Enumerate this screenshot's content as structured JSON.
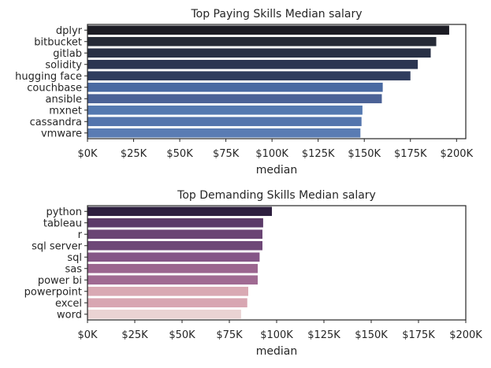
{
  "chart_data": [
    {
      "type": "bar",
      "orientation": "horizontal",
      "title": "Top Paying Skills Median salary",
      "xlabel": "median",
      "ylabel": "",
      "categories": [
        "dplyr",
        "bitbucket",
        "gitlab",
        "solidity",
        "hugging face",
        "couchbase",
        "ansible",
        "mxnet",
        "cassandra",
        "vmware"
      ],
      "values": [
        196000,
        189000,
        186000,
        179000,
        175000,
        160000,
        159500,
        149000,
        148500,
        147900
      ],
      "colors": [
        "#1c1c24",
        "#252a36",
        "#283045",
        "#2b3551",
        "#2f3d5e",
        "#4a6aa2",
        "#4b6296",
        "#5579b0",
        "#5475ad",
        "#5a7cb3"
      ],
      "xlim": [
        0,
        205000
      ],
      "xticks": [
        0,
        25000,
        50000,
        75000,
        100000,
        125000,
        150000,
        175000,
        200000
      ],
      "xtick_labels": [
        "$0K",
        "$25K",
        "$50K",
        "$75K",
        "$100K",
        "$125K",
        "$150K",
        "$175K",
        "$200K"
      ],
      "grid": false,
      "legend": "none"
    },
    {
      "type": "bar",
      "orientation": "horizontal",
      "title": "Top Demanding Skills Median salary",
      "xlabel": "median",
      "ylabel": "",
      "categories": [
        "python",
        "tableau",
        "r",
        "sql server",
        "sql",
        "sas",
        "power bi",
        "powerpoint",
        "excel",
        "word"
      ],
      "values": [
        97500,
        92875,
        92500,
        92500,
        91000,
        90000,
        90000,
        85000,
        84479,
        81194
      ],
      "colors": [
        "#2d1e3e",
        "#5b3a68",
        "#6a4474",
        "#6e4777",
        "#855687",
        "#9b658f",
        "#a06a92",
        "#d9a9b3",
        "#d8a6b2",
        "#ead3d3"
      ],
      "xlim": [
        0,
        200000
      ],
      "xticks": [
        0,
        25000,
        50000,
        75000,
        100000,
        125000,
        150000,
        175000,
        200000
      ],
      "xtick_labels": [
        "$0K",
        "$25K",
        "$50K",
        "$75K",
        "$100K",
        "$125K",
        "$150K",
        "$175K",
        "$200K"
      ],
      "grid": false,
      "legend": "none"
    }
  ]
}
